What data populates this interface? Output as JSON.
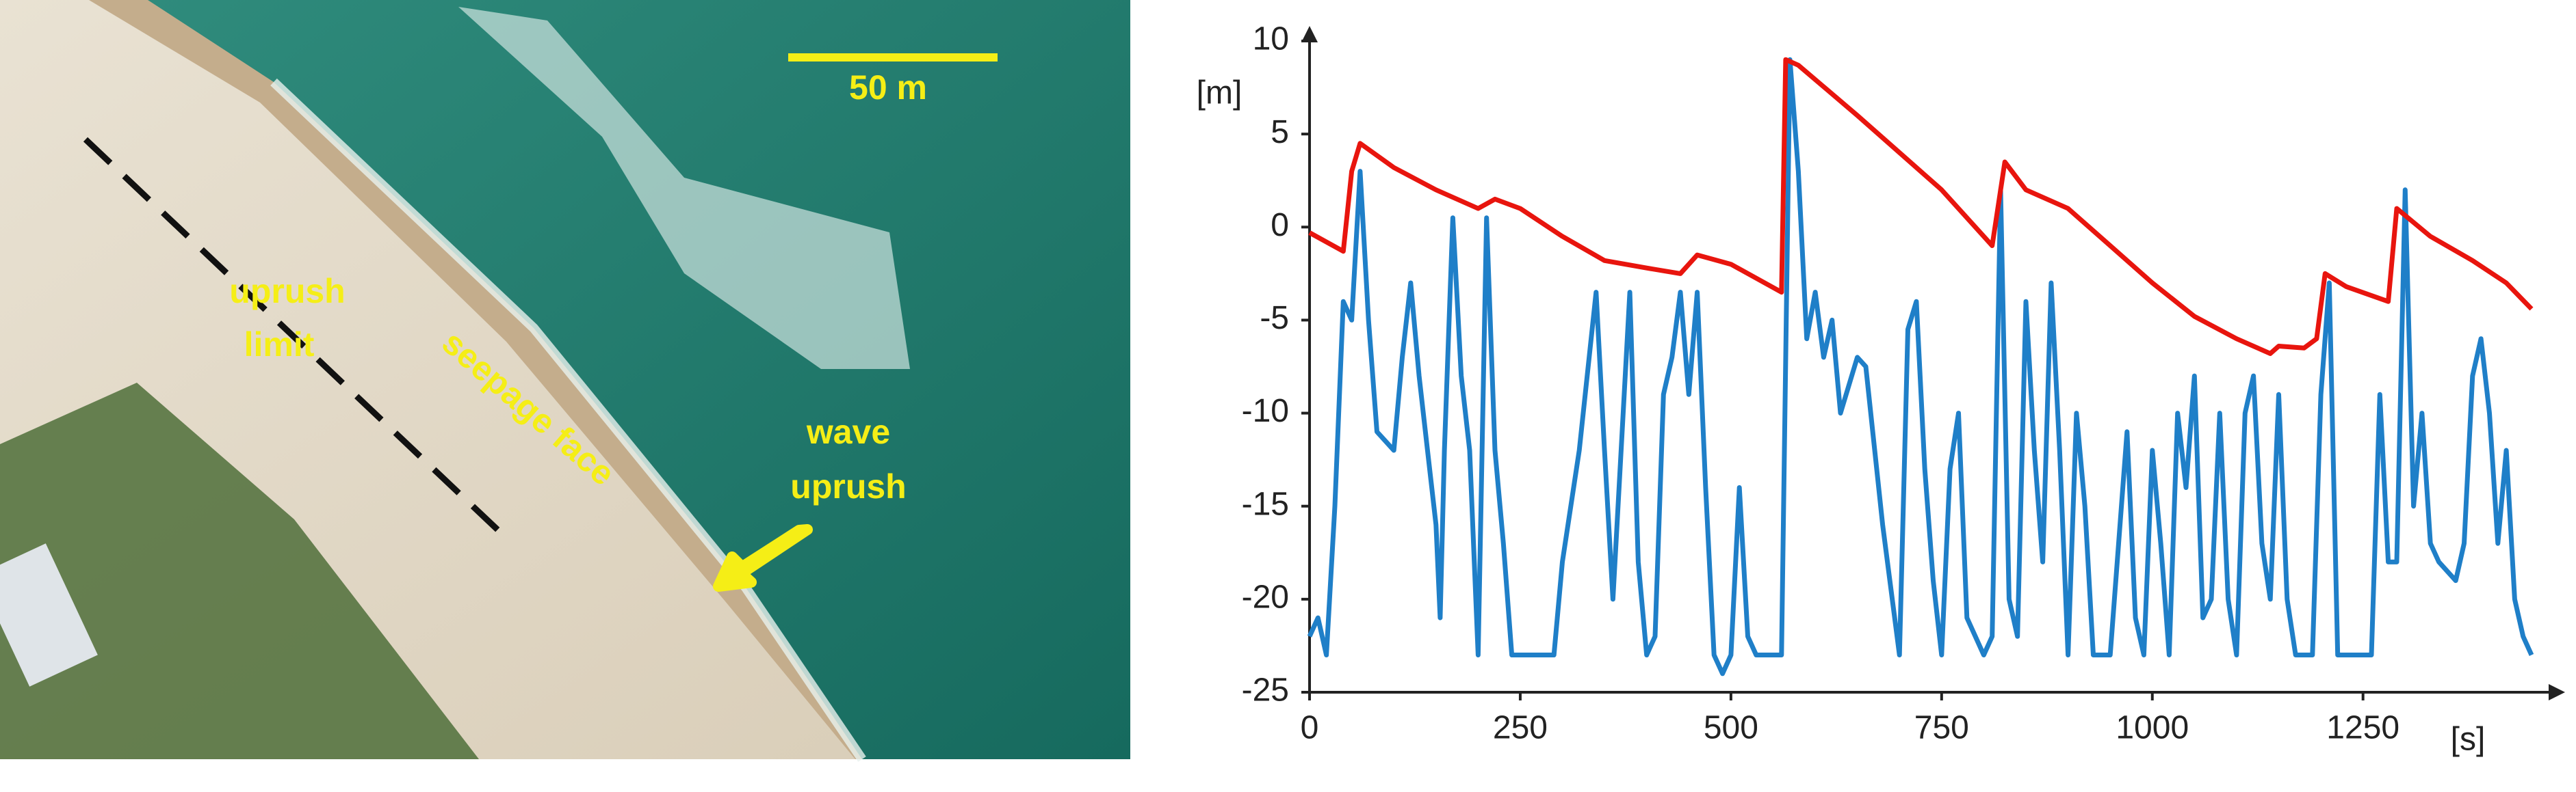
{
  "photo": {
    "scale_bar": "50 m",
    "uprush_limit": [
      "uprush",
      "limit"
    ],
    "seepage_face": "seepage face",
    "wave_uprush": [
      "wave",
      "uprush"
    ]
  },
  "chart_data": {
    "type": "line",
    "y_label": "[m]",
    "x_label": "[s]",
    "xlim": [
      0,
      1480
    ],
    "ylim": [
      -25,
      10
    ],
    "xticks": [
      0,
      250,
      500,
      750,
      1000,
      1250
    ],
    "yticks": [
      -25,
      -20,
      -15,
      -10,
      -5,
      0,
      5,
      10
    ],
    "series": [
      {
        "color": "#e8150e",
        "x": [
          0,
          40,
          50,
          60,
          100,
          150,
          200,
          220,
          250,
          300,
          350,
          400,
          440,
          460,
          500,
          560,
          565,
          580,
          650,
          750,
          810,
          825,
          850,
          900,
          950,
          1000,
          1050,
          1100,
          1140,
          1150,
          1180,
          1195,
          1205,
          1230,
          1280,
          1290,
          1330,
          1380,
          1420,
          1450
        ],
        "values": [
          -0.3,
          -1.3,
          3,
          4.5,
          3.2,
          2,
          1,
          1.5,
          1,
          -0.5,
          -1.8,
          -2.2,
          -2.5,
          -1.5,
          -2,
          -3.5,
          9,
          8.7,
          6,
          2,
          -1,
          3.5,
          2,
          1,
          -1,
          -3,
          -4.8,
          -6,
          -6.8,
          -6.4,
          -6.5,
          -6,
          -2.5,
          -3.2,
          -4,
          1,
          -0.5,
          -1.8,
          -3,
          -4.4
        ]
      },
      {
        "color": "#1f7fc8",
        "x": [
          0,
          10,
          20,
          30,
          40,
          50,
          60,
          70,
          80,
          100,
          110,
          120,
          130,
          140,
          150,
          155,
          160,
          170,
          180,
          190,
          200,
          210,
          220,
          230,
          240,
          290,
          300,
          320,
          340,
          350,
          360,
          380,
          390,
          400,
          410,
          420,
          430,
          440,
          450,
          460,
          470,
          480,
          490,
          500,
          510,
          520,
          530,
          560,
          570,
          580,
          590,
          600,
          610,
          620,
          630,
          650,
          660,
          680,
          700,
          710,
          720,
          730,
          740,
          750,
          760,
          770,
          780,
          800,
          810,
          820,
          830,
          840,
          850,
          860,
          870,
          880,
          890,
          900,
          910,
          920,
          930,
          950,
          960,
          970,
          980,
          990,
          1000,
          1010,
          1020,
          1030,
          1040,
          1050,
          1060,
          1070,
          1080,
          1090,
          1100,
          1110,
          1120,
          1130,
          1140,
          1150,
          1160,
          1170,
          1190,
          1200,
          1210,
          1220,
          1260,
          1270,
          1280,
          1290,
          1300,
          1310,
          1320,
          1330,
          1340,
          1360,
          1370,
          1380,
          1390,
          1400,
          1410,
          1420,
          1430,
          1440,
          1450
        ],
        "values": [
          -22,
          -21,
          -23,
          -15,
          -4,
          -5,
          3,
          -5,
          -11,
          -12,
          -7,
          -3,
          -8,
          -12,
          -16,
          -21,
          -12,
          0.5,
          -8,
          -12,
          -23,
          0.5,
          -12,
          -17,
          -23,
          -23,
          -18,
          -12,
          -3.5,
          -12,
          -20,
          -3.5,
          -18,
          -23,
          -22,
          -9,
          -7,
          -3.5,
          -9,
          -3.5,
          -14,
          -23,
          -24,
          -23,
          -14,
          -22,
          -23,
          -23,
          9,
          3,
          -6,
          -3.5,
          -7,
          -5,
          -10,
          -7,
          -7.5,
          -16,
          -23,
          -5.5,
          -4,
          -13,
          -19,
          -23,
          -13,
          -10,
          -21,
          -23,
          -22,
          2,
          -20,
          -22,
          -4,
          -12,
          -18,
          -3,
          -12,
          -23,
          -10,
          -15,
          -23,
          -23,
          -17,
          -11,
          -21,
          -23,
          -12,
          -17,
          -23,
          -10,
          -14,
          -8,
          -21,
          -20,
          -10,
          -20,
          -23,
          -10,
          -8,
          -17,
          -20,
          -9,
          -20,
          -23,
          -23,
          -9,
          -3,
          -23,
          -23,
          -9,
          -18,
          -18,
          2,
          -15,
          -10,
          -17,
          -18,
          -19,
          -17,
          -8,
          -6,
          -10,
          -17,
          -12,
          -20,
          -22,
          -23
        ]
      }
    ]
  }
}
